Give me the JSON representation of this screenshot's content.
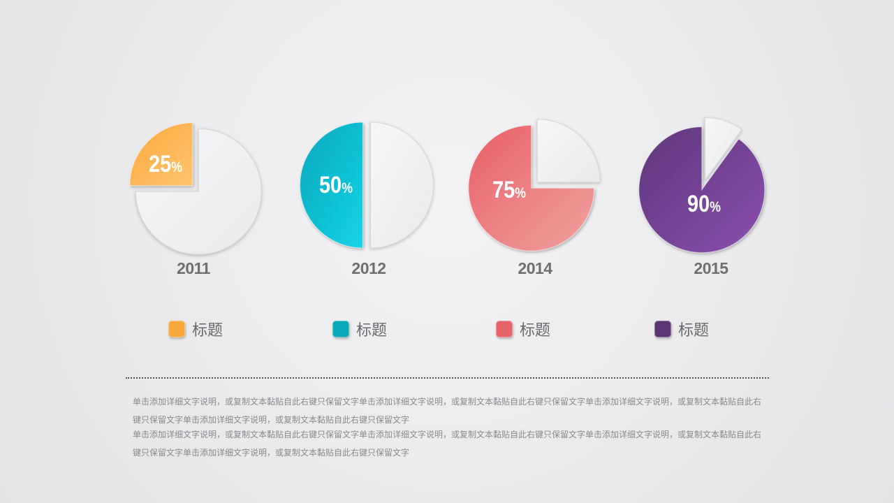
{
  "chart_data": {
    "type": "pie",
    "unit": "%",
    "charts": [
      {
        "year": "2011",
        "value": 25,
        "label": "25%",
        "color": "#f9a83c",
        "color_light": "#ffc46e"
      },
      {
        "year": "2012",
        "value": 50,
        "label": "50%",
        "color": "#0aa8bb",
        "color_light": "#14d3e6"
      },
      {
        "year": "2014",
        "value": 75,
        "label": "75%",
        "color": "#e85f66",
        "color_light": "#f0a3a0"
      },
      {
        "year": "2015",
        "value": 90,
        "label": "90%",
        "color": "#5e3679",
        "color_light": "#8c4fb0"
      }
    ],
    "remainder_color": "#f0f0f1"
  },
  "legend": [
    {
      "label": "标题",
      "color": "#f9a83c"
    },
    {
      "label": "标题",
      "color": "#0aa8bb"
    },
    {
      "label": "标题",
      "color": "#e6636a"
    },
    {
      "label": "标题",
      "color": "#5c3476"
    }
  ],
  "description": {
    "paragraph_1": "单击添加详细文字说明，或复制文本黏贴自此右键只保留文字单击添加详细文字说明，或复制文本黏贴自此右键只保留文字单击添加详细文字说明，或复制文本黏贴自此右键只保留文字单击添加详细文字说明，或复制文本黏贴自此右键只保留文字",
    "paragraph_2": "单击添加详细文字说明，或复制文本黏贴自此右键只保留文字单击添加详细文字说明，或复制文本黏贴自此右键只保留文字单击添加详细文字说明，或复制文本黏贴自此右键只保留文字单击添加详细文字说明，或复制文本黏贴自此右键只保留文字"
  }
}
